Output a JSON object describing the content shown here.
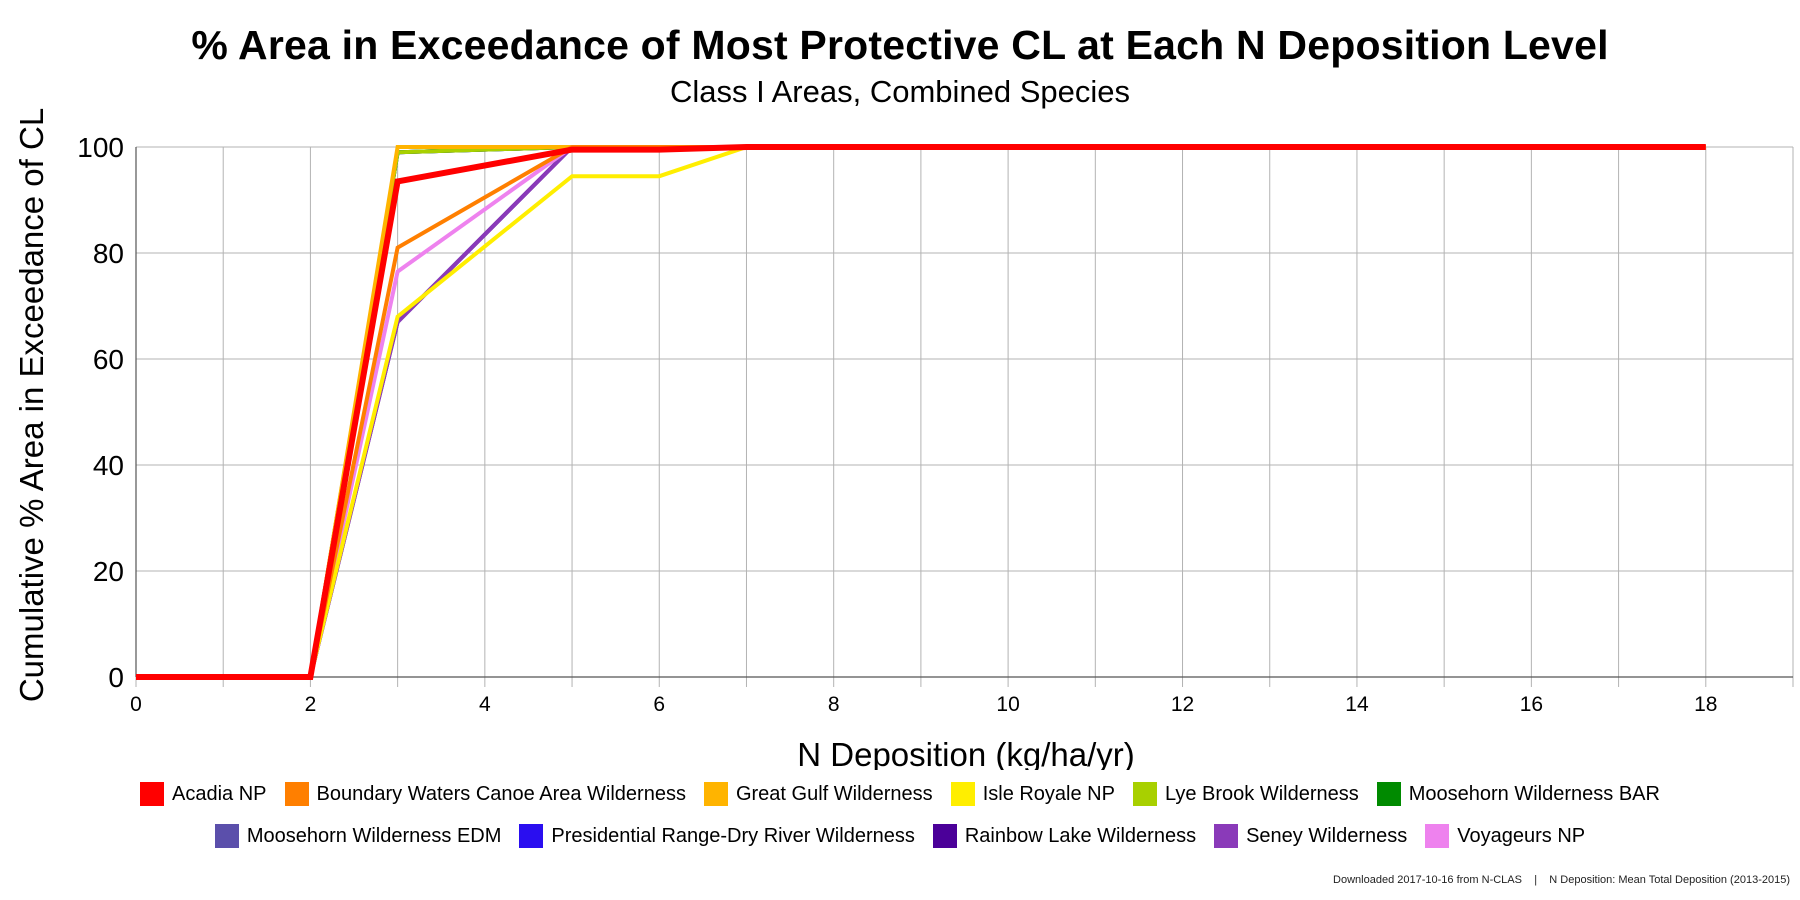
{
  "title": "% Area in Exceedance of Most Protective CL at Each N Deposition Level",
  "subtitle": "Class I Areas, Combined Species",
  "footer": "Downloaded 2017-10-16 from N-CLAS    |    N Deposition: Mean Total Deposition (2013-2015)",
  "chart_data": {
    "type": "line",
    "title": "% Area in Exceedance of Most Protective CL at Each N Deposition Level",
    "subtitle": "Class I Areas, Combined Species",
    "xlabel": "N Deposition (kg/ha/yr)",
    "ylabel": "Cumulative % Area in Exceedance of CL",
    "xlim": [
      0,
      19
    ],
    "ylim": [
      0,
      100
    ],
    "x_ticks": [
      0,
      2,
      4,
      6,
      8,
      10,
      12,
      14,
      16,
      18
    ],
    "y_ticks": [
      0,
      20,
      40,
      60,
      80,
      100
    ],
    "grid": true,
    "legend_position": "bottom",
    "series": [
      {
        "name": "Rainbow Lake Wilderness",
        "color": "#4b0099",
        "points": [
          [
            0,
            0
          ],
          [
            2,
            0
          ],
          [
            3,
            67
          ],
          [
            5,
            100
          ],
          [
            18,
            100
          ]
        ]
      },
      {
        "name": "Seney Wilderness",
        "color": "#8a3ab9",
        "points": [
          [
            0,
            0
          ],
          [
            2,
            0
          ],
          [
            3,
            67
          ],
          [
            5,
            100
          ],
          [
            18,
            100
          ]
        ]
      },
      {
        "name": "Moosehorn Wilderness EDM",
        "color": "#5b4fab",
        "points": [
          [
            0,
            0
          ],
          [
            2,
            0
          ],
          [
            3,
            99
          ],
          [
            5,
            100
          ],
          [
            18,
            100
          ]
        ]
      },
      {
        "name": "Presidential Range-Dry River Wilderness",
        "color": "#2a0ef0",
        "points": [
          [
            0,
            0
          ],
          [
            2,
            0
          ],
          [
            3,
            99
          ],
          [
            5,
            100
          ],
          [
            18,
            100
          ]
        ]
      },
      {
        "name": "Moosehorn Wilderness BAR",
        "color": "#008a00",
        "points": [
          [
            0,
            0
          ],
          [
            2,
            0
          ],
          [
            3,
            99
          ],
          [
            5,
            100
          ],
          [
            18,
            100
          ]
        ]
      },
      {
        "name": "Lye Brook Wilderness",
        "color": "#a8d000",
        "points": [
          [
            0,
            0
          ],
          [
            2,
            0
          ],
          [
            3,
            99
          ],
          [
            5,
            100
          ],
          [
            18,
            100
          ]
        ]
      },
      {
        "name": "Great Gulf Wilderness",
        "color": "#ffb400",
        "points": [
          [
            0,
            0
          ],
          [
            2,
            0
          ],
          [
            3,
            100
          ],
          [
            18,
            100
          ]
        ]
      },
      {
        "name": "Voyageurs NP",
        "color": "#ee82ee",
        "points": [
          [
            0,
            0
          ],
          [
            2,
            0
          ],
          [
            3,
            76.5
          ],
          [
            5,
            100
          ],
          [
            18,
            100
          ]
        ]
      },
      {
        "name": "Isle Royale NP",
        "color": "#ffee00",
        "points": [
          [
            0,
            0
          ],
          [
            2,
            0
          ],
          [
            3,
            68
          ],
          [
            5,
            94.5
          ],
          [
            6,
            94.5
          ],
          [
            7,
            100
          ],
          [
            18,
            100
          ]
        ]
      },
      {
        "name": "Boundary Waters Canoe Area Wilderness",
        "color": "#ff7f00",
        "points": [
          [
            0,
            0
          ],
          [
            2,
            0
          ],
          [
            3,
            81
          ],
          [
            5,
            100
          ],
          [
            18,
            100
          ]
        ]
      },
      {
        "name": "Acadia NP",
        "color": "#ff0000",
        "points": [
          [
            0,
            0
          ],
          [
            2,
            0
          ],
          [
            3,
            93.5
          ],
          [
            5,
            99.5
          ],
          [
            6,
            99.5
          ],
          [
            7,
            100
          ],
          [
            18,
            100
          ]
        ]
      }
    ]
  },
  "legend": {
    "rows": [
      [
        {
          "label": "Acadia NP",
          "color": "#ff0000"
        },
        {
          "label": "Boundary Waters Canoe Area Wilderness",
          "color": "#ff7f00"
        },
        {
          "label": "Great Gulf Wilderness",
          "color": "#ffb400"
        },
        {
          "label": "Isle Royale NP",
          "color": "#ffee00"
        },
        {
          "label": "Lye Brook Wilderness",
          "color": "#a8d000"
        },
        {
          "label": "Moosehorn Wilderness BAR",
          "color": "#008a00"
        }
      ],
      [
        {
          "label": "Moosehorn Wilderness EDM",
          "color": "#5b4fab"
        },
        {
          "label": "Presidential Range-Dry River Wilderness",
          "color": "#2a0ef0"
        },
        {
          "label": "Rainbow Lake Wilderness",
          "color": "#4b0099"
        },
        {
          "label": "Seney Wilderness",
          "color": "#8a3ab9"
        },
        {
          "label": "Voyageurs NP",
          "color": "#ee82ee"
        }
      ]
    ]
  }
}
